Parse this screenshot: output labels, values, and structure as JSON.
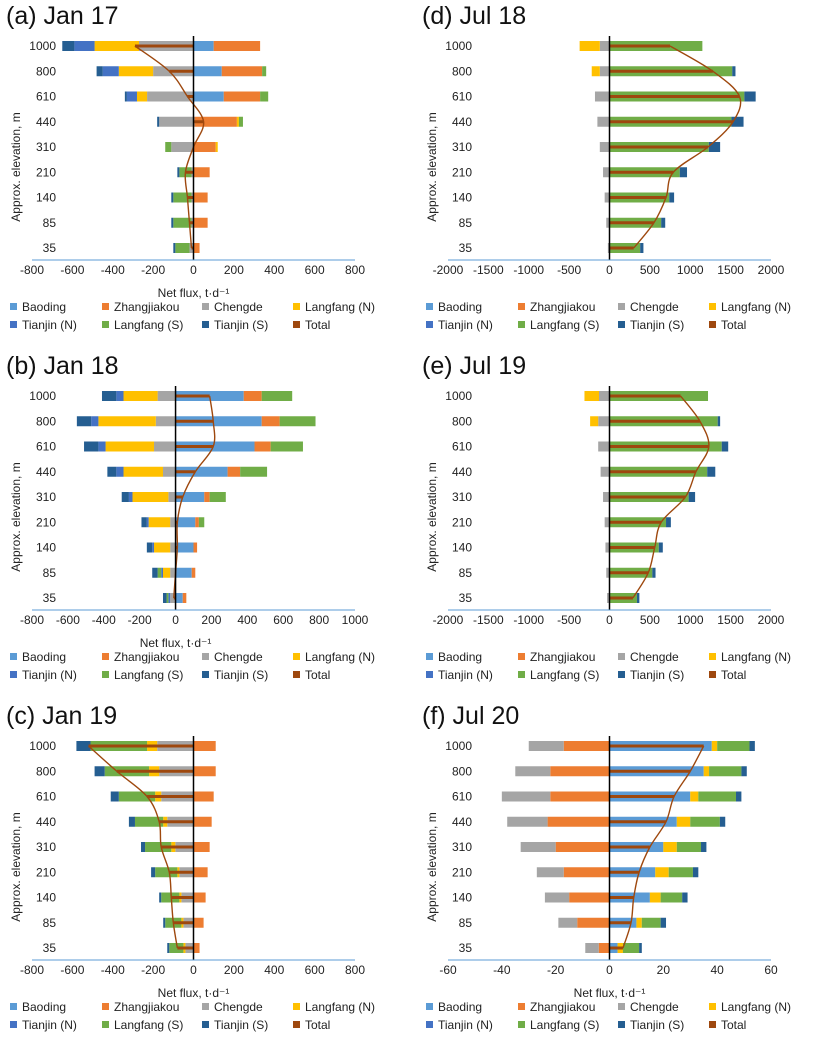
{
  "series_colors": {
    "Baoding": "#5b9bd5",
    "Zhangjiakou": "#ed7d31",
    "Chengde": "#a5a5a5",
    "Langfang (N)": "#ffc000",
    "Tianjin (N)": "#4472c4",
    "Langfang (S)": "#70ad47",
    "Tianjin (S)": "#255e91",
    "Total": "#9e480e"
  },
  "legend_labels": [
    "Baoding",
    "Zhangjiakou",
    "Chengde",
    "Langfang (N)",
    "Tianjin (N)",
    "Langfang (S)",
    "Tianjin (S)",
    "Total"
  ],
  "chart_data": [
    {
      "id": "a",
      "title": "(a) Jan 17",
      "type": "bar",
      "xlabel": "Net flux, t·d⁻¹",
      "ylabel": "Approx. elevation, m",
      "xlim": [
        -800,
        800
      ],
      "xticks": [
        -800,
        -600,
        -400,
        -200,
        0,
        200,
        400,
        600,
        800
      ],
      "tick_labels": [
        "-800",
        "-600",
        "-400",
        "-200",
        "0",
        "200",
        "400",
        "600",
        "800"
      ],
      "categories": [
        "35",
        "85",
        "140",
        "210",
        "310",
        "440",
        "610",
        "800",
        "1000"
      ],
      "series": [
        {
          "name": "Baoding",
          "values": [
            0,
            0,
            0,
            0,
            0,
            5,
            150,
            140,
            100
          ]
        },
        {
          "name": "Zhangjiakou",
          "values": [
            30,
            70,
            70,
            80,
            110,
            210,
            180,
            200,
            230
          ]
        },
        {
          "name": "Chengde",
          "values": [
            -20,
            -10,
            -10,
            -10,
            -110,
            -170,
            -230,
            -200,
            -270
          ]
        },
        {
          "name": "Langfang (N)",
          "values": [
            0,
            0,
            0,
            0,
            10,
            10,
            -50,
            -170,
            -220
          ]
        },
        {
          "name": "Tianjin (N)",
          "values": [
            0,
            0,
            0,
            0,
            0,
            0,
            -50,
            -80,
            -100
          ]
        },
        {
          "name": "Langfang (S)",
          "values": [
            -70,
            -90,
            -90,
            -60,
            -30,
            20,
            40,
            20,
            0
          ]
        },
        {
          "name": "Tianjin (S)",
          "values": [
            -10,
            -10,
            -10,
            -10,
            0,
            -10,
            -10,
            -30,
            -60
          ]
        },
        {
          "name": "Total",
          "values": [
            -10,
            -20,
            -30,
            -40,
            0,
            50,
            -30,
            -120,
            -290
          ]
        }
      ]
    },
    {
      "id": "b",
      "title": "(b) Jan 18",
      "type": "bar",
      "xlabel": "Net flux, t·d⁻¹",
      "ylabel": "Approx. elevation, m",
      "xlim": [
        -800,
        1000
      ],
      "xticks": [
        -800,
        -600,
        -400,
        -200,
        0,
        200,
        400,
        600,
        800,
        1000
      ],
      "tick_labels": [
        "-800",
        "-600",
        "-400",
        "-200",
        "0",
        "200",
        "400",
        "600",
        "800",
        "1000"
      ],
      "categories": [
        "35",
        "85",
        "140",
        "210",
        "310",
        "440",
        "610",
        "800",
        "1000"
      ],
      "series": [
        {
          "name": "Baoding",
          "values": [
            40,
            90,
            100,
            110,
            160,
            290,
            440,
            480,
            380
          ]
        },
        {
          "name": "Zhangjiakou",
          "values": [
            20,
            20,
            20,
            20,
            30,
            70,
            90,
            100,
            100
          ]
        },
        {
          "name": "Chengde",
          "values": [
            -30,
            -30,
            -30,
            -30,
            -40,
            -70,
            -120,
            -110,
            -100
          ]
        },
        {
          "name": "Langfang (N)",
          "values": [
            0,
            -40,
            -90,
            -120,
            -200,
            -220,
            -270,
            -320,
            -190
          ]
        },
        {
          "name": "Tianjin (N)",
          "values": [
            -10,
            -10,
            -10,
            -10,
            -20,
            -40,
            -40,
            -40,
            -40
          ]
        },
        {
          "name": "Langfang (S)",
          "values": [
            -10,
            -20,
            0,
            30,
            90,
            150,
            180,
            200,
            170
          ]
        },
        {
          "name": "Tianjin (S)",
          "values": [
            -20,
            -30,
            -30,
            -30,
            -40,
            -50,
            -80,
            -80,
            -80
          ]
        },
        {
          "name": "Total",
          "values": [
            -10,
            0,
            10,
            10,
            40,
            110,
            210,
            210,
            190
          ]
        }
      ]
    },
    {
      "id": "c",
      "title": "(c) Jan 19",
      "type": "bar",
      "xlabel": "Net flux, t·d⁻¹",
      "ylabel": "Approx. elevation, m",
      "xlim": [
        -800,
        800
      ],
      "xticks": [
        -800,
        -600,
        -400,
        -200,
        0,
        200,
        400,
        600,
        800
      ],
      "tick_labels": [
        "-800",
        "-600",
        "-400",
        "-200",
        "0",
        "200",
        "400",
        "600",
        "800"
      ],
      "categories": [
        "35",
        "85",
        "140",
        "210",
        "310",
        "440",
        "610",
        "800",
        "1000"
      ],
      "series": [
        {
          "name": "Baoding",
          "values": [
            0,
            0,
            0,
            0,
            0,
            0,
            0,
            0,
            0
          ]
        },
        {
          "name": "Zhangjiakou",
          "values": [
            30,
            50,
            60,
            70,
            80,
            90,
            100,
            110,
            110
          ]
        },
        {
          "name": "Chengde",
          "values": [
            -40,
            -50,
            -60,
            -70,
            -90,
            -130,
            -160,
            -170,
            -180
          ]
        },
        {
          "name": "Langfang (N)",
          "values": [
            -10,
            -10,
            -10,
            -10,
            -20,
            -20,
            -30,
            -50,
            -50
          ]
        },
        {
          "name": "Tianjin (N)",
          "values": [
            0,
            0,
            0,
            0,
            0,
            0,
            0,
            0,
            0
          ]
        },
        {
          "name": "Langfang (S)",
          "values": [
            -70,
            -80,
            -90,
            -110,
            -130,
            -140,
            -180,
            -220,
            -280
          ]
        },
        {
          "name": "Tianjin (S)",
          "values": [
            -10,
            -10,
            -10,
            -20,
            -20,
            -30,
            -40,
            -50,
            -70
          ]
        },
        {
          "name": "Total",
          "values": [
            -80,
            -100,
            -110,
            -120,
            -160,
            -170,
            -230,
            -380,
            -520
          ]
        }
      ]
    },
    {
      "id": "d",
      "title": "(d) Jul 18",
      "type": "bar",
      "xlabel": "",
      "ylabel": "Approx. elevation, m",
      "xlim": [
        -2000,
        2000
      ],
      "xticks": [
        -2000,
        -1500,
        -1000,
        -500,
        0,
        500,
        1000,
        1500,
        2000
      ],
      "tick_labels": [
        "-2000",
        "-1500",
        "-1000",
        "-500",
        "0",
        "500",
        "1000",
        "1500",
        "2000"
      ],
      "categories": [
        "35",
        "85",
        "140",
        "210",
        "310",
        "440",
        "610",
        "800",
        "1000"
      ],
      "series": [
        {
          "name": "Baoding",
          "values": [
            0,
            0,
            0,
            0,
            0,
            0,
            0,
            0,
            0
          ]
        },
        {
          "name": "Zhangjiakou",
          "values": [
            0,
            0,
            0,
            0,
            0,
            0,
            0,
            0,
            0
          ]
        },
        {
          "name": "Chengde",
          "values": [
            -20,
            -40,
            -60,
            -80,
            -120,
            -150,
            -180,
            -120,
            -120
          ]
        },
        {
          "name": "Langfang (N)",
          "values": [
            0,
            0,
            0,
            0,
            0,
            0,
            0,
            -100,
            -250
          ]
        },
        {
          "name": "Tianjin (N)",
          "values": [
            0,
            0,
            0,
            0,
            0,
            0,
            0,
            0,
            0
          ]
        },
        {
          "name": "Langfang (S)",
          "values": [
            380,
            640,
            740,
            870,
            1230,
            1510,
            1670,
            1520,
            1150
          ]
        },
        {
          "name": "Tianjin (S)",
          "values": [
            40,
            50,
            60,
            90,
            140,
            150,
            140,
            40,
            0
          ]
        },
        {
          "name": "Total",
          "values": [
            300,
            550,
            700,
            790,
            1220,
            1530,
            1610,
            1280,
            750
          ]
        }
      ]
    },
    {
      "id": "e",
      "title": "(e) Jul 19",
      "type": "bar",
      "xlabel": "",
      "ylabel": "Approx. elevation, m",
      "xlim": [
        -2000,
        2000
      ],
      "xticks": [
        -2000,
        -1500,
        -1000,
        -500,
        0,
        500,
        1000,
        1500,
        2000
      ],
      "tick_labels": [
        "-2000",
        "-1500",
        "-1000",
        "-500",
        "0",
        "500",
        "1000",
        "1500",
        "2000"
      ],
      "categories": [
        "35",
        "85",
        "140",
        "210",
        "310",
        "440",
        "610",
        "800",
        "1000"
      ],
      "series": [
        {
          "name": "Baoding",
          "values": [
            0,
            0,
            0,
            0,
            0,
            0,
            0,
            0,
            0
          ]
        },
        {
          "name": "Zhangjiakou",
          "values": [
            0,
            0,
            0,
            0,
            0,
            0,
            0,
            0,
            0
          ]
        },
        {
          "name": "Chengde",
          "values": [
            -30,
            -40,
            -50,
            -60,
            -80,
            -110,
            -140,
            -140,
            -130
          ]
        },
        {
          "name": "Langfang (N)",
          "values": [
            0,
            0,
            0,
            0,
            0,
            0,
            0,
            -100,
            -180
          ]
        },
        {
          "name": "Tianjin (N)",
          "values": [
            0,
            0,
            0,
            0,
            0,
            0,
            0,
            0,
            0
          ]
        },
        {
          "name": "Langfang (S)",
          "values": [
            340,
            530,
            610,
            700,
            980,
            1210,
            1390,
            1340,
            1220
          ]
        },
        {
          "name": "Tianjin (S)",
          "values": [
            30,
            40,
            50,
            60,
            80,
            100,
            80,
            30,
            0
          ]
        },
        {
          "name": "Total",
          "values": [
            290,
            480,
            560,
            640,
            940,
            1070,
            1230,
            1120,
            880
          ]
        }
      ]
    },
    {
      "id": "f",
      "title": "(f) Jul 20",
      "type": "bar",
      "xlabel": "Net flux, t·d⁻¹",
      "ylabel": "Approx. elevation, m",
      "xlim": [
        -60,
        60
      ],
      "xticks": [
        -60,
        -40,
        -20,
        0,
        20,
        40,
        60
      ],
      "tick_labels": [
        "-60",
        "-40",
        "-20",
        "0",
        "20",
        "40",
        "60"
      ],
      "categories": [
        "35",
        "85",
        "140",
        "210",
        "310",
        "440",
        "610",
        "800",
        "1000"
      ],
      "series": [
        {
          "name": "Baoding",
          "values": [
            3,
            10,
            15,
            17,
            20,
            25,
            30,
            35,
            38
          ]
        },
        {
          "name": "Zhangjiakou",
          "values": [
            -4,
            -12,
            -15,
            -17,
            -20,
            -23,
            -22,
            -22,
            -17
          ]
        },
        {
          "name": "Chengde",
          "values": [
            -5,
            -7,
            -9,
            -10,
            -13,
            -15,
            -18,
            -13,
            -13
          ]
        },
        {
          "name": "Langfang (N)",
          "values": [
            2,
            2,
            4,
            5,
            5,
            5,
            3,
            2,
            2
          ]
        },
        {
          "name": "Tianjin (N)",
          "values": [
            0,
            0,
            0,
            0,
            0,
            0,
            0,
            0,
            0
          ]
        },
        {
          "name": "Langfang (S)",
          "values": [
            6,
            7,
            8,
            9,
            9,
            11,
            14,
            12,
            12
          ]
        },
        {
          "name": "Tianjin (S)",
          "values": [
            1,
            2,
            2,
            2,
            2,
            2,
            2,
            2,
            2
          ]
        },
        {
          "name": "Total",
          "values": [
            5,
            8,
            9,
            11,
            15,
            21,
            24,
            30,
            35
          ]
        }
      ]
    }
  ]
}
